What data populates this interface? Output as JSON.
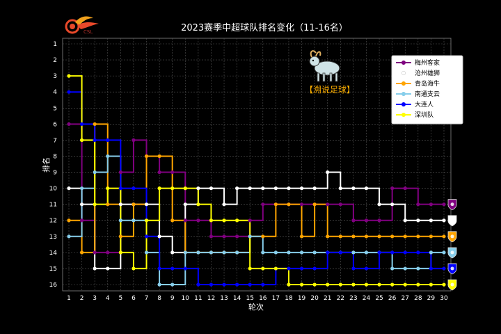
{
  "chart_data": {
    "type": "line",
    "title": "2023赛季中超球队排名变化（11-16名）",
    "xlabel": "轮次",
    "ylabel": "排名",
    "x": [
      1,
      2,
      3,
      4,
      5,
      6,
      7,
      8,
      9,
      10,
      11,
      12,
      13,
      14,
      15,
      16,
      17,
      18,
      19,
      20,
      21,
      22,
      23,
      24,
      25,
      26,
      27,
      28,
      29,
      30
    ],
    "xlim": [
      1,
      30
    ],
    "ylim": [
      1,
      16
    ],
    "y_inverted": true,
    "grid": true,
    "step": "post",
    "legend_position": "top-right",
    "series": [
      {
        "name": "梅州客家",
        "color": "#800080",
        "values": [
          6,
          12,
          14,
          14,
          9,
          7,
          8,
          9,
          9,
          12,
          12,
          13,
          13,
          13,
          12,
          11,
          11,
          11,
          11,
          11,
          11,
          11,
          12,
          12,
          12,
          10,
          10,
          11,
          11,
          11
        ]
      },
      {
        "name": "沧州雄狮",
        "color": "#ffffff",
        "values": [
          10,
          11,
          15,
          15,
          11,
          11,
          11,
          13,
          14,
          11,
          10,
          10,
          11,
          10,
          10,
          10,
          10,
          10,
          10,
          10,
          9,
          10,
          10,
          10,
          11,
          11,
          12,
          12,
          12,
          12
        ]
      },
      {
        "name": "青岛海牛",
        "color": "#ffa500",
        "values": [
          12,
          14,
          6,
          11,
          13,
          11,
          8,
          8,
          12,
          14,
          14,
          14,
          14,
          14,
          13,
          13,
          11,
          11,
          13,
          11,
          13,
          13,
          13,
          13,
          13,
          13,
          13,
          13,
          13,
          13
        ]
      },
      {
        "name": "南通支云",
        "color": "#87ceeb",
        "values": [
          13,
          10,
          9,
          8,
          12,
          12,
          14,
          16,
          16,
          14,
          14,
          14,
          14,
          14,
          13,
          14,
          14,
          14,
          14,
          14,
          14,
          14,
          14,
          14,
          14,
          15,
          15,
          15,
          14,
          14
        ]
      },
      {
        "name": "大连人",
        "color": "#0000ff",
        "values": [
          4,
          6,
          7,
          7,
          10,
          10,
          13,
          15,
          15,
          15,
          16,
          16,
          16,
          16,
          16,
          16,
          15,
          15,
          15,
          15,
          14,
          14,
          15,
          15,
          14,
          14,
          14,
          14,
          15,
          15
        ]
      },
      {
        "name": "深圳队",
        "color": "#ffff00",
        "values": [
          3,
          7,
          11,
          10,
          14,
          15,
          12,
          10,
          10,
          10,
          11,
          12,
          12,
          12,
          15,
          15,
          15,
          16,
          16,
          16,
          16,
          16,
          16,
          16,
          16,
          16,
          16,
          16,
          16,
          16
        ]
      }
    ]
  },
  "watermark": {
    "label": "【溯说足球】",
    "icon": "goat-icon",
    "logo": "csl-logo"
  }
}
